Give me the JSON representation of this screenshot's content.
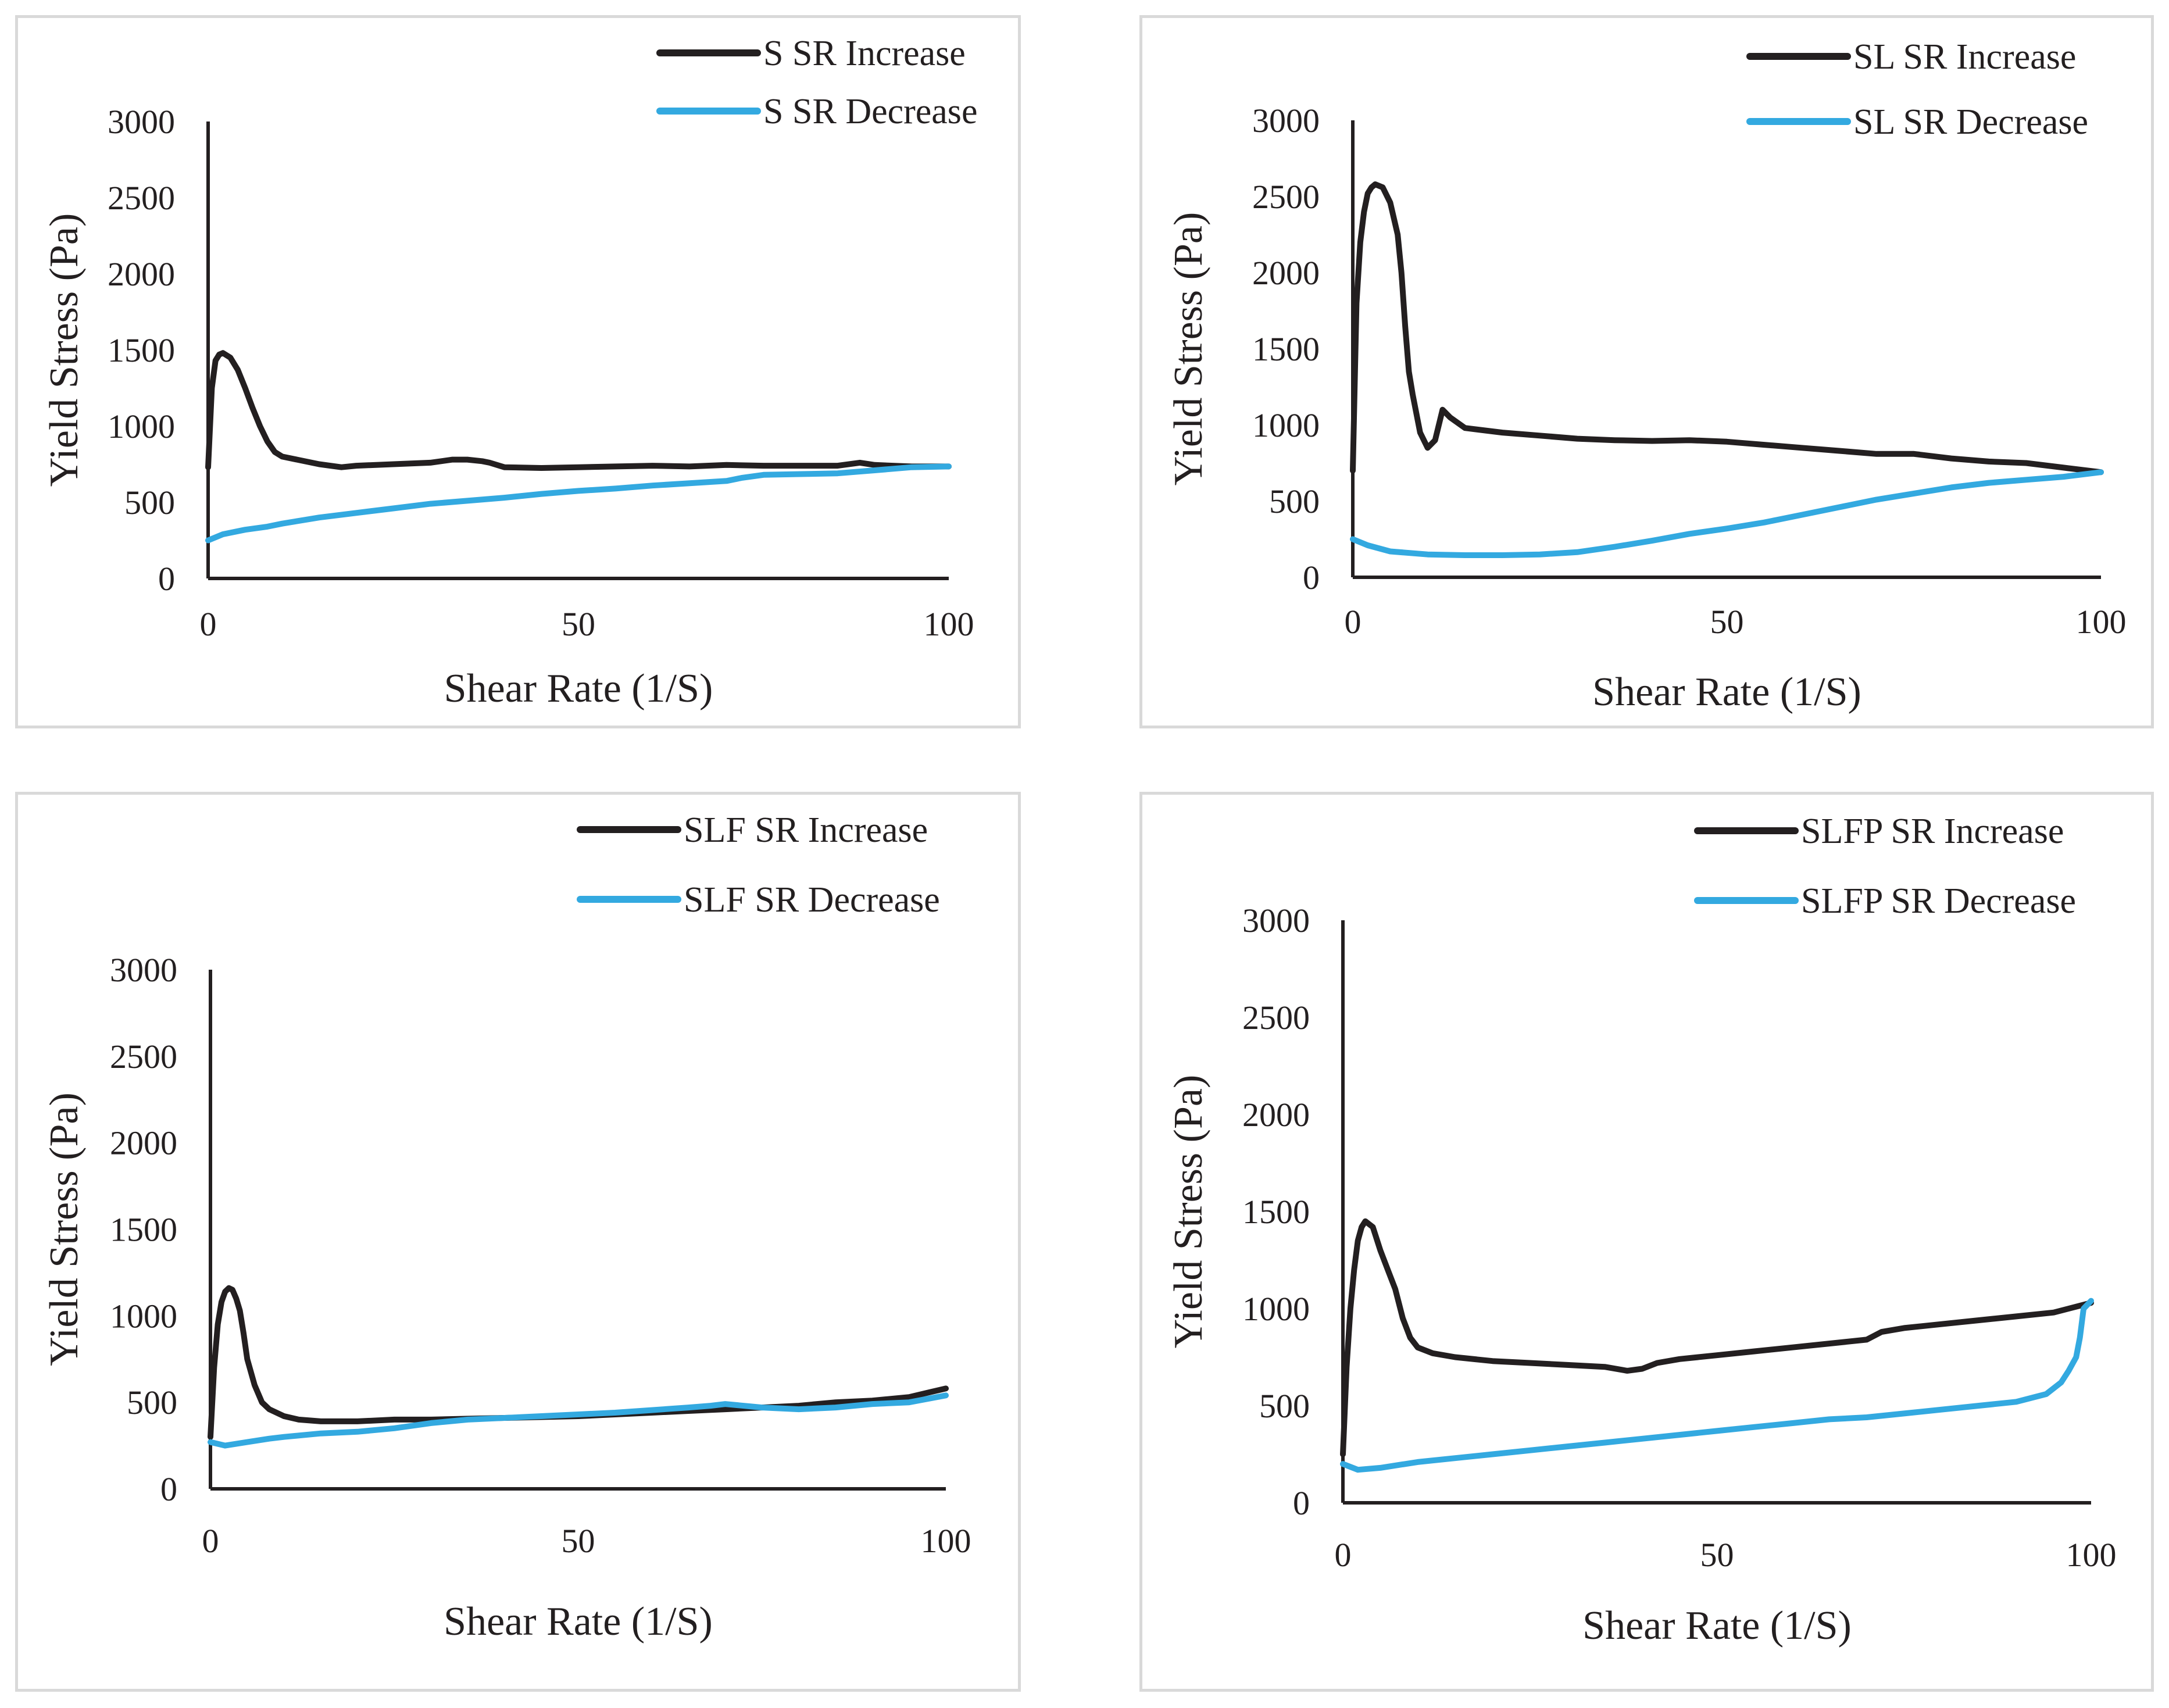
{
  "colors": {
    "increase": "#231f20",
    "decrease": "#33a9e0"
  },
  "chart_data": [
    {
      "type": "line",
      "xlabel": "Shear Rate (1/S)",
      "ylabel": "Yield Stress (Pa)",
      "xlim": [
        0,
        100
      ],
      "ylim": [
        0,
        3000
      ],
      "xticks": [
        0,
        50,
        100
      ],
      "yticks": [
        0,
        500,
        1000,
        1500,
        2000,
        2500,
        3000
      ],
      "legend_position": "top-right",
      "series": [
        {
          "name": "S SR Increase",
          "color_key": "increase",
          "x": [
            0,
            0.5,
            1,
            1.5,
            2,
            3,
            4,
            5,
            6,
            7,
            8,
            9,
            10,
            12,
            15,
            18,
            20,
            25,
            30,
            33,
            35,
            37,
            38,
            40,
            45,
            50,
            55,
            60,
            65,
            70,
            75,
            80,
            85,
            88,
            90,
            95,
            100
          ],
          "y": [
            730,
            1250,
            1430,
            1470,
            1480,
            1450,
            1370,
            1250,
            1120,
            1000,
            900,
            830,
            800,
            780,
            750,
            730,
            740,
            750,
            760,
            780,
            780,
            770,
            760,
            730,
            725,
            730,
            735,
            740,
            735,
            745,
            740,
            740,
            740,
            760,
            745,
            735,
            735
          ]
        },
        {
          "name": "S SR Decrease",
          "color_key": "decrease",
          "x": [
            0,
            2,
            5,
            8,
            10,
            15,
            20,
            25,
            30,
            35,
            40,
            45,
            50,
            55,
            60,
            65,
            70,
            72,
            75,
            80,
            85,
            90,
            95,
            100
          ],
          "y": [
            250,
            290,
            320,
            340,
            360,
            400,
            430,
            460,
            490,
            510,
            530,
            555,
            575,
            590,
            610,
            625,
            640,
            660,
            680,
            685,
            690,
            710,
            730,
            735
          ]
        }
      ]
    },
    {
      "type": "line",
      "xlabel": "Shear Rate (1/S)",
      "ylabel": "Yield Stress (Pa)",
      "xlim": [
        0,
        100
      ],
      "ylim": [
        0,
        3000
      ],
      "xticks": [
        0,
        50,
        100
      ],
      "yticks": [
        0,
        500,
        1000,
        1500,
        2000,
        2500,
        3000
      ],
      "legend_position": "top-right",
      "series": [
        {
          "name": "SL SR Increase",
          "color_key": "increase",
          "x": [
            0,
            0.5,
            1,
            1.5,
            2,
            2.5,
            3,
            4,
            5,
            6,
            6.5,
            7,
            7.5,
            8,
            9,
            10,
            11,
            12,
            13,
            15,
            20,
            25,
            30,
            35,
            40,
            45,
            50,
            55,
            60,
            65,
            70,
            75,
            80,
            85,
            90,
            95,
            100
          ],
          "y": [
            700,
            1800,
            2200,
            2400,
            2520,
            2560,
            2580,
            2560,
            2460,
            2250,
            2000,
            1650,
            1350,
            1200,
            950,
            850,
            900,
            1100,
            1050,
            980,
            950,
            930,
            910,
            900,
            895,
            900,
            890,
            870,
            850,
            830,
            810,
            810,
            780,
            760,
            750,
            720,
            690
          ]
        },
        {
          "name": "SL SR Decrease",
          "color_key": "decrease",
          "x": [
            0,
            2,
            5,
            10,
            15,
            20,
            25,
            30,
            35,
            40,
            45,
            50,
            55,
            60,
            65,
            70,
            75,
            80,
            85,
            90,
            95,
            100
          ],
          "y": [
            250,
            210,
            170,
            150,
            145,
            145,
            150,
            165,
            200,
            240,
            285,
            320,
            360,
            410,
            460,
            510,
            550,
            590,
            620,
            640,
            660,
            690
          ]
        }
      ]
    },
    {
      "type": "line",
      "xlabel": "Shear Rate (1/S)",
      "ylabel": "Yield Stress (Pa)",
      "xlim": [
        0,
        100
      ],
      "ylim": [
        0,
        3000
      ],
      "xticks": [
        0,
        50,
        100
      ],
      "yticks": [
        0,
        500,
        1000,
        1500,
        2000,
        2500,
        3000
      ],
      "legend_position": "top-right",
      "series": [
        {
          "name": "SLF SR Increase",
          "color_key": "increase",
          "x": [
            0,
            0.5,
            1,
            1.5,
            2,
            2.5,
            3,
            3.5,
            4,
            4.5,
            5,
            6,
            7,
            8,
            10,
            12,
            15,
            20,
            25,
            30,
            35,
            40,
            45,
            50,
            55,
            60,
            65,
            70,
            75,
            80,
            85,
            90,
            95,
            98,
            100
          ],
          "y": [
            300,
            700,
            950,
            1080,
            1140,
            1160,
            1150,
            1100,
            1030,
            900,
            750,
            600,
            500,
            460,
            420,
            400,
            390,
            390,
            400,
            400,
            405,
            410,
            415,
            420,
            430,
            440,
            450,
            460,
            470,
            480,
            500,
            510,
            530,
            560,
            580
          ]
        },
        {
          "name": "SLF SR Decrease",
          "color_key": "decrease",
          "x": [
            0,
            2,
            5,
            8,
            10,
            15,
            20,
            25,
            30,
            35,
            40,
            45,
            50,
            55,
            60,
            65,
            68,
            70,
            75,
            80,
            85,
            90,
            95,
            100
          ],
          "y": [
            270,
            250,
            270,
            290,
            300,
            320,
            330,
            350,
            380,
            400,
            410,
            420,
            430,
            440,
            455,
            470,
            480,
            490,
            470,
            460,
            470,
            490,
            500,
            540
          ]
        }
      ]
    },
    {
      "type": "line",
      "xlabel": "Shear Rate (1/S)",
      "ylabel": "Yield Stress (Pa)",
      "xlim": [
        0,
        100
      ],
      "ylim": [
        0,
        3000
      ],
      "xticks": [
        0,
        50,
        100
      ],
      "yticks": [
        0,
        500,
        1000,
        1500,
        2000,
        2500,
        3000
      ],
      "legend_position": "top-right",
      "series": [
        {
          "name": "SLFP SR Increase",
          "color_key": "increase",
          "x": [
            0,
            0.5,
            1,
            1.5,
            2,
            2.5,
            3,
            4,
            5,
            6,
            7,
            8,
            9,
            10,
            12,
            15,
            20,
            25,
            30,
            35,
            38,
            40,
            42,
            45,
            50,
            55,
            60,
            65,
            70,
            72,
            75,
            80,
            85,
            90,
            95,
            100
          ],
          "y": [
            250,
            700,
            1000,
            1200,
            1350,
            1420,
            1450,
            1420,
            1300,
            1200,
            1100,
            950,
            850,
            800,
            770,
            750,
            730,
            720,
            710,
            700,
            680,
            690,
            720,
            740,
            760,
            780,
            800,
            820,
            840,
            880,
            900,
            920,
            940,
            960,
            980,
            1030
          ]
        },
        {
          "name": "SLFP SR Decrease",
          "color_key": "decrease",
          "x": [
            0,
            2,
            5,
            10,
            15,
            20,
            25,
            30,
            35,
            40,
            45,
            50,
            55,
            60,
            65,
            70,
            75,
            80,
            85,
            90,
            94,
            96,
            97,
            98,
            98.5,
            99,
            100
          ],
          "y": [
            200,
            170,
            180,
            210,
            230,
            250,
            270,
            290,
            310,
            330,
            350,
            370,
            390,
            410,
            430,
            440,
            460,
            480,
            500,
            520,
            560,
            620,
            680,
            750,
            850,
            1000,
            1040
          ]
        }
      ]
    }
  ]
}
